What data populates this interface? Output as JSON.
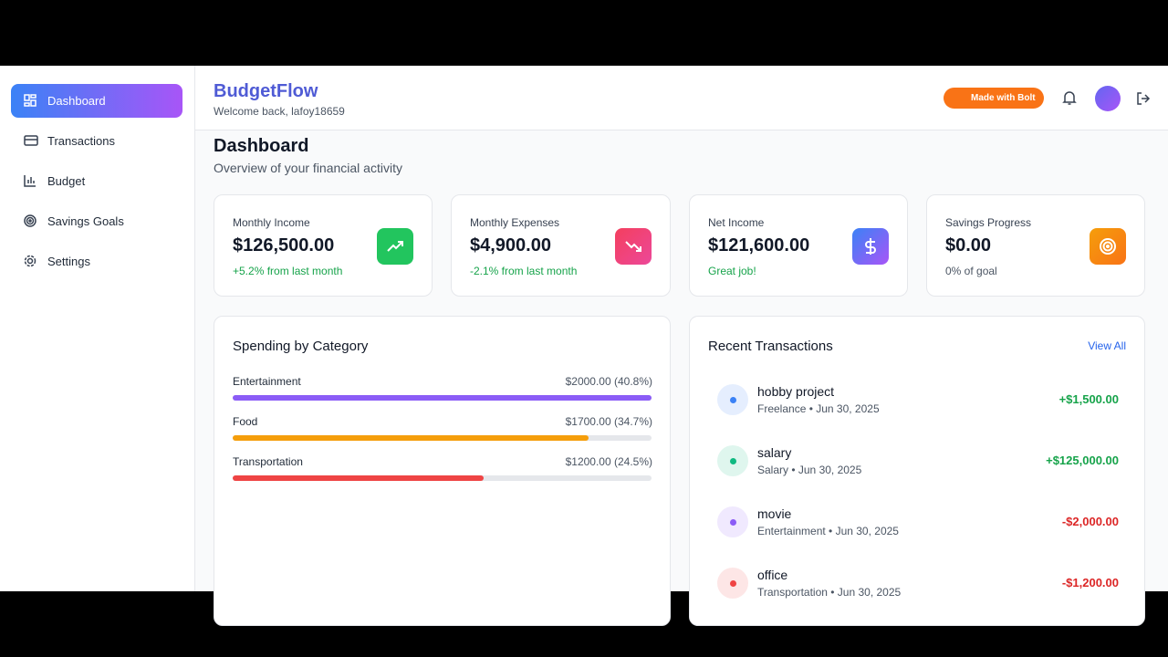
{
  "sidebar": {
    "nav": [
      "Dashboard",
      "Transactions",
      "Budget",
      "Savings Goals",
      "Settings"
    ]
  },
  "header": {
    "brand": "BudgetFlow",
    "welcome": "Welcome back, lafoy18659",
    "badge": "Made with Bolt"
  },
  "page": {
    "title": "Dashboard",
    "subtitle": "Overview of your financial activity"
  },
  "stats": [
    {
      "label": "Monthly Income",
      "value": "$126,500.00",
      "note": "+5.2% from last month"
    },
    {
      "label": "Monthly Expenses",
      "value": "$4,900.00",
      "note": "-2.1% from last month"
    },
    {
      "label": "Net Income",
      "value": "$121,600.00",
      "note": "Great job!"
    },
    {
      "label": "Savings Progress",
      "value": "$0.00",
      "note": "0% of goal"
    }
  ],
  "spending": {
    "title": "Spending by Category",
    "categories": [
      {
        "name": "Entertainment",
        "amount": 2000,
        "label": "$2000.00 (40.8%)",
        "color": "#8b5cf6"
      },
      {
        "name": "Food",
        "amount": 1700,
        "label": "$1700.00 (34.7%)",
        "color": "#f59e0b"
      },
      {
        "name": "Transportation",
        "amount": 1200,
        "label": "$1200.00 (24.5%)",
        "color": "#ef4444"
      }
    ]
  },
  "transactions": {
    "title": "Recent Transactions",
    "link": "View All",
    "items": [
      {
        "name": "hobby project",
        "meta": "Freelance • Jun 30, 2025",
        "amount": "+$1,500.00",
        "color": "#3b82f6"
      },
      {
        "name": "salary",
        "meta": "Salary • Jun 30, 2025",
        "amount": "+$125,000.00",
        "color": "#10b981"
      },
      {
        "name": "movie",
        "meta": "Entertainment • Jun 30, 2025",
        "amount": "-$2,000.00",
        "color": "#8b5cf6"
      },
      {
        "name": "office",
        "meta": "Transportation • Jun 30, 2025",
        "amount": "-$1,200.00",
        "color": "#ef4444"
      }
    ]
  }
}
